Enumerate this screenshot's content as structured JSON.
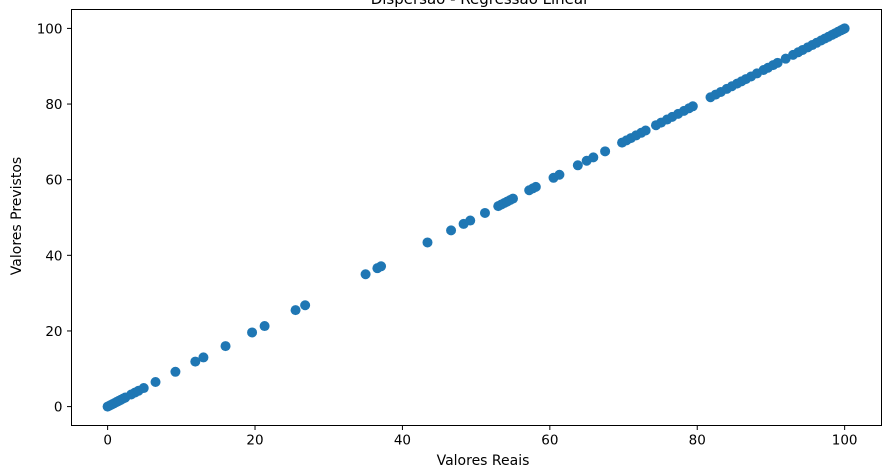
{
  "chart_data": {
    "type": "scatter",
    "title": "Dispersão - Regressão Linear",
    "xlabel": "Valores Reais",
    "ylabel": "Valores Previstos",
    "xlim": [
      -4.9,
      105
    ],
    "ylim": [
      -5.0,
      105
    ],
    "xticks": [
      0,
      20,
      40,
      60,
      80,
      100
    ],
    "yticks": [
      0,
      20,
      40,
      60,
      80,
      100
    ],
    "grid": false,
    "marker_color": "#1f77b4",
    "series": [
      {
        "x": [
          0,
          0.3,
          0.6,
          0.9,
          1.2,
          1.5,
          1.8,
          2.1,
          2.4,
          3.2,
          3.7,
          4.2,
          4.9,
          6.5,
          9.2,
          11.9,
          13.0,
          16.0,
          19.6,
          21.3,
          25.5,
          26.8,
          35.0,
          36.6,
          37.1,
          43.4,
          46.6,
          48.3,
          49.2,
          51.2,
          53.0,
          53.4,
          53.8,
          54.2,
          54.6,
          55.0,
          57.2,
          57.7,
          58.1,
          60.5,
          61.3,
          63.8,
          65.0,
          65.9,
          67.5,
          69.8,
          70.4,
          71.0,
          71.7,
          72.4,
          73.0,
          74.4,
          75.1,
          75.9,
          76.6,
          77.4,
          78.2,
          78.9,
          79.4,
          81.8,
          82.5,
          83.2,
          84.0,
          84.7,
          85.4,
          86.0,
          86.6,
          87.3,
          88.1,
          89.0,
          89.6,
          90.3,
          90.9,
          92.0,
          93.0,
          93.7,
          94.3,
          95.0,
          95.6,
          96.2,
          96.8,
          97.3,
          97.8,
          98.3,
          98.7,
          99.1,
          99.5,
          99.8,
          100.0
        ],
        "y": [
          0,
          0.3,
          0.6,
          0.9,
          1.2,
          1.5,
          1.8,
          2.1,
          2.4,
          3.2,
          3.7,
          4.2,
          4.9,
          6.5,
          9.2,
          11.9,
          13.0,
          16.0,
          19.6,
          21.3,
          25.5,
          26.8,
          35.0,
          36.6,
          37.1,
          43.4,
          46.6,
          48.3,
          49.2,
          51.2,
          53.0,
          53.4,
          53.8,
          54.2,
          54.6,
          55.0,
          57.2,
          57.7,
          58.1,
          60.5,
          61.3,
          63.8,
          65.0,
          65.9,
          67.5,
          69.8,
          70.4,
          71.0,
          71.7,
          72.4,
          73.0,
          74.4,
          75.1,
          75.9,
          76.6,
          77.4,
          78.2,
          78.9,
          79.4,
          81.8,
          82.5,
          83.2,
          84.0,
          84.7,
          85.4,
          86.0,
          86.6,
          87.3,
          88.1,
          89.0,
          89.6,
          90.3,
          90.9,
          92.0,
          93.0,
          93.7,
          94.3,
          95.0,
          95.6,
          96.2,
          96.8,
          97.3,
          97.8,
          98.3,
          98.7,
          99.1,
          99.5,
          99.8,
          100.0
        ]
      }
    ]
  }
}
